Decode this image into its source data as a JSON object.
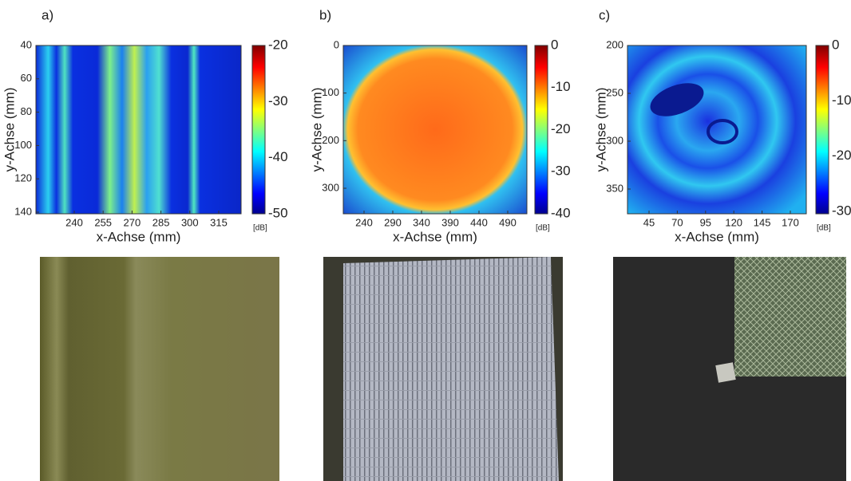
{
  "panels": [
    {
      "label": "a)",
      "x_label": "x-Achse (mm)",
      "y_label": "y-Achse (mm)",
      "x_ticks": [
        240,
        255,
        270,
        285,
        300,
        315
      ],
      "y_ticks": [
        40,
        60,
        80,
        100,
        120,
        140
      ],
      "colorbar_ticks": [
        -20,
        -30,
        -40,
        -50
      ],
      "unit": "[dB]"
    },
    {
      "label": "b)",
      "x_label": "x-Achse (mm)",
      "y_label": "y-Achse (mm)",
      "x_ticks": [
        240,
        290,
        340,
        390,
        440,
        490
      ],
      "y_ticks": [
        0,
        100,
        200,
        300
      ],
      "colorbar_ticks": [
        0,
        -10,
        -20,
        -30,
        -40
      ],
      "unit": "[dB]"
    },
    {
      "label": "c)",
      "x_label": "x-Achse (mm)",
      "y_label": "y-Achse (mm)",
      "x_ticks": [
        45,
        70,
        95,
        120,
        145,
        170
      ],
      "y_ticks": [
        200,
        250,
        300,
        350
      ],
      "colorbar_ticks": [
        0,
        -10,
        -20,
        -30
      ],
      "unit": "[dB]"
    }
  ]
}
